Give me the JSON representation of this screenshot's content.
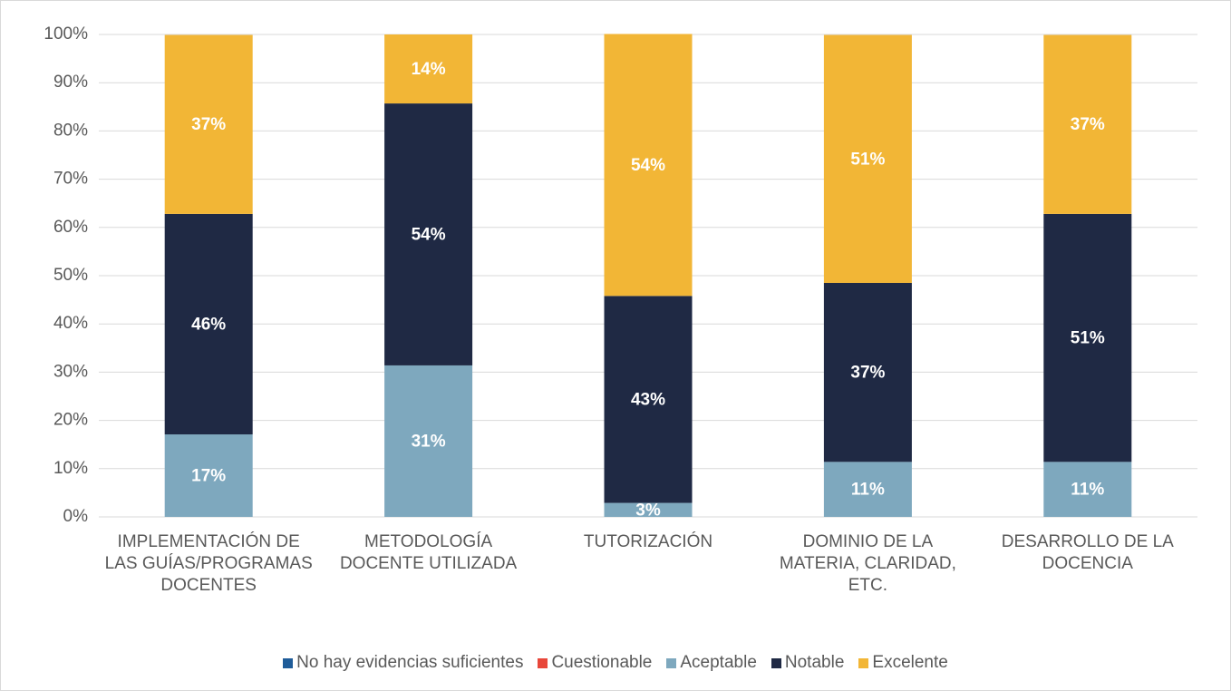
{
  "chart_data": {
    "type": "stacked_bar",
    "categories": [
      "IMPLEMENTACIÓN DE LAS GUÍAS/PROGRAMAS DOCENTES",
      "METODOLOGÍA DOCENTE UTILIZADA",
      "TUTORIZACIÓN",
      "DOMINIO DE LA MATERIA, CLARIDAD, ETC.",
      "DESARROLLO DE LA DOCENCIA"
    ],
    "series": [
      {
        "name": "No hay evidencias suficientes",
        "color": "#1f5c99",
        "values": [
          0,
          0,
          0,
          0,
          0
        ]
      },
      {
        "name": "Cuestionable",
        "color": "#e8473a",
        "values": [
          0,
          0,
          0,
          0,
          0
        ]
      },
      {
        "name": "Aceptable",
        "color": "#7ea8be",
        "values": [
          17.1,
          31.4,
          2.9,
          11.4,
          11.4
        ],
        "value_labels": [
          "17%",
          "31%",
          "3%",
          "11%",
          "11%"
        ]
      },
      {
        "name": "Notable",
        "color": "#1f2944",
        "values": [
          45.7,
          54.3,
          42.9,
          37.1,
          51.4
        ],
        "value_labels": [
          "46%",
          "54%",
          "43%",
          "37%",
          "51%"
        ]
      },
      {
        "name": "Excelente",
        "color": "#f2b636",
        "values": [
          37.1,
          14.3,
          54.3,
          51.4,
          37.1
        ],
        "value_labels": [
          "37%",
          "14%",
          "54%",
          "51%",
          "37%"
        ]
      }
    ],
    "ylim": [
      0,
      100
    ],
    "yticks": [
      {
        "value": 0,
        "label": "0%"
      },
      {
        "value": 10,
        "label": "10%"
      },
      {
        "value": 20,
        "label": "20%"
      },
      {
        "value": 30,
        "label": "30%"
      },
      {
        "value": 40,
        "label": "40%"
      },
      {
        "value": 50,
        "label": "50%"
      },
      {
        "value": 60,
        "label": "60%"
      },
      {
        "value": 70,
        "label": "70%"
      },
      {
        "value": 80,
        "label": "80%"
      },
      {
        "value": 90,
        "label": "90%"
      },
      {
        "value": 100,
        "label": "100%"
      }
    ],
    "grid": true,
    "legend": "bottom"
  }
}
